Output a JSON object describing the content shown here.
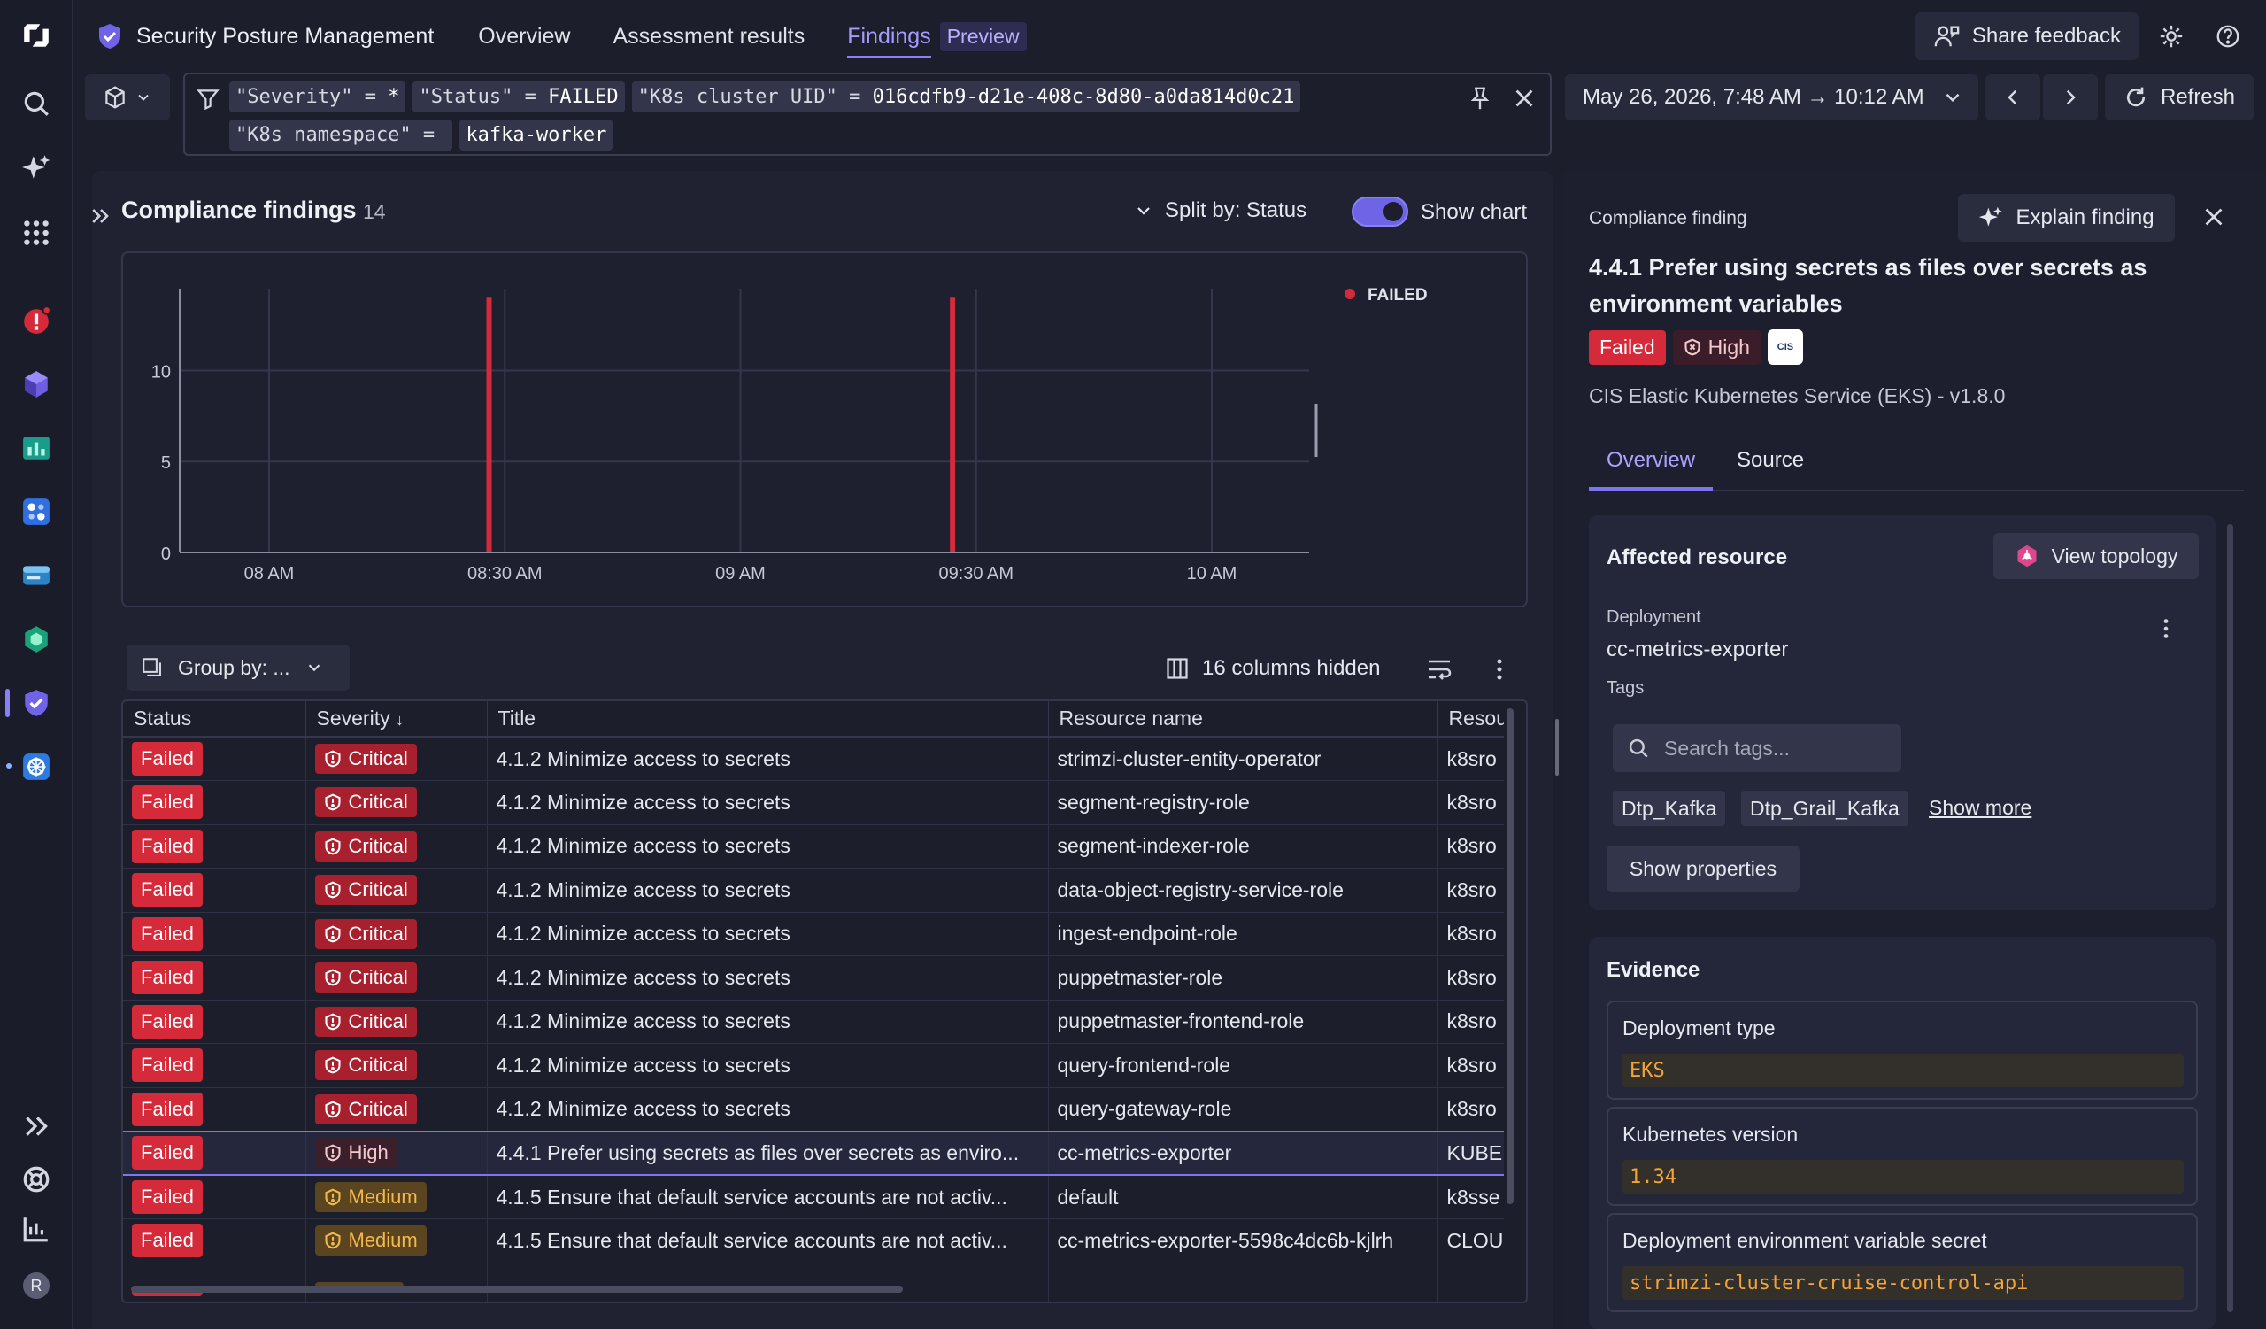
{
  "app": {
    "title": "Security Posture Management",
    "nav": [
      "Overview",
      "Assessment results",
      "Findings"
    ],
    "preview_tag": "Preview",
    "share_feedback": "Share feedback",
    "user_initial": "R"
  },
  "filter": {
    "tokens": [
      {
        "key": "\"Severity\"",
        "op": " = ",
        "value": "*"
      },
      {
        "key": "\"Status\"",
        "op": " = ",
        "value": "FAILED"
      },
      {
        "key": "\"K8s cluster UID\"",
        "op": " = ",
        "value": "016cdfb9-d21e-408c-8d80-a0da814d0c21"
      },
      {
        "key": "\"K8s namespace\"",
        "op": " = ",
        "value": ""
      },
      {
        "key": "",
        "op": "",
        "value": "kafka-worker"
      }
    ]
  },
  "timeframe": "May 26, 2026, 7:48 AM → 10:12 AM",
  "refresh_label": "Refresh",
  "panel": {
    "title": "Compliance findings",
    "count": "14",
    "split_label": "Split by: Status",
    "show_chart_label": "Show chart",
    "show_chart_on": true
  },
  "chart_data": {
    "type": "bar",
    "x_ticks": [
      "08 AM",
      "08:30 AM",
      "09 AM",
      "09:30 AM",
      "10 AM"
    ],
    "y_ticks": [
      0,
      5,
      10
    ],
    "ylim": [
      0,
      14.5
    ],
    "series": [
      {
        "name": "FAILED",
        "color": "#d52a3a",
        "points": [
          {
            "t": "08:28 AM",
            "value": 14
          },
          {
            "t": "09:27 AM",
            "value": 14
          }
        ]
      }
    ],
    "legend_position": "top-right",
    "grid": true
  },
  "table": {
    "group_by": "Group by: ...",
    "columns_hidden": "16 columns hidden",
    "columns": [
      "Status",
      "Severity",
      "Title",
      "Resource name",
      "Resou"
    ],
    "rows": [
      {
        "status": "Failed",
        "severity": "Critical",
        "sev": "critical",
        "title": "4.1.2 Minimize access to secrets",
        "resource": "strimzi-cluster-entity-operator",
        "res2": "k8sro"
      },
      {
        "status": "Failed",
        "severity": "Critical",
        "sev": "critical",
        "title": "4.1.2 Minimize access to secrets",
        "resource": "segment-registry-role",
        "res2": "k8sro"
      },
      {
        "status": "Failed",
        "severity": "Critical",
        "sev": "critical",
        "title": "4.1.2 Minimize access to secrets",
        "resource": "segment-indexer-role",
        "res2": "k8sro"
      },
      {
        "status": "Failed",
        "severity": "Critical",
        "sev": "critical",
        "title": "4.1.2 Minimize access to secrets",
        "resource": "data-object-registry-service-role",
        "res2": "k8sro"
      },
      {
        "status": "Failed",
        "severity": "Critical",
        "sev": "critical",
        "title": "4.1.2 Minimize access to secrets",
        "resource": "ingest-endpoint-role",
        "res2": "k8sro"
      },
      {
        "status": "Failed",
        "severity": "Critical",
        "sev": "critical",
        "title": "4.1.2 Minimize access to secrets",
        "resource": "puppetmaster-role",
        "res2": "k8sro"
      },
      {
        "status": "Failed",
        "severity": "Critical",
        "sev": "critical",
        "title": "4.1.2 Minimize access to secrets",
        "resource": "puppetmaster-frontend-role",
        "res2": "k8sro"
      },
      {
        "status": "Failed",
        "severity": "Critical",
        "sev": "critical",
        "title": "4.1.2 Minimize access to secrets",
        "resource": "query-frontend-role",
        "res2": "k8sro"
      },
      {
        "status": "Failed",
        "severity": "Critical",
        "sev": "critical",
        "title": "4.1.2 Minimize access to secrets",
        "resource": "query-gateway-role",
        "res2": "k8sro"
      },
      {
        "status": "Failed",
        "severity": "High",
        "sev": "high",
        "title": "4.4.1 Prefer using secrets as files over secrets as enviro...",
        "resource": "cc-metrics-exporter",
        "res2": "KUBE",
        "selected": true
      },
      {
        "status": "Failed",
        "severity": "Medium",
        "sev": "medium",
        "title": "4.1.5 Ensure that default service accounts are not activ...",
        "resource": "default",
        "res2": "k8sse"
      },
      {
        "status": "Failed",
        "severity": "Medium",
        "sev": "medium",
        "title": "4.1.5 Ensure that default service accounts are not activ...",
        "resource": "cc-metrics-exporter-5598c4dc6b-kjlrh",
        "res2": "CLOU"
      },
      {
        "status": "",
        "severity": "",
        "sev": "medium",
        "title": "",
        "resource": "",
        "res2": ""
      }
    ]
  },
  "detail": {
    "label": "Compliance finding",
    "explain_label": "Explain finding",
    "title": "4.4.1 Prefer using secrets as files over secrets as environment variables",
    "status": "Failed",
    "severity": "High",
    "cis_logo_text": "CIS",
    "benchmark": "CIS Elastic Kubernetes Service (EKS) - v1.8.0",
    "tabs": [
      "Overview",
      "Source"
    ],
    "affected": {
      "title": "Affected resource",
      "view_topology": "View topology",
      "type_label": "Deployment",
      "name": "cc-metrics-exporter",
      "tags_label": "Tags",
      "search_placeholder": "Search tags...",
      "tags": [
        "Dtp_Kafka",
        "Dtp_Grail_Kafka"
      ],
      "show_more": "Show more",
      "show_properties": "Show properties"
    },
    "evidence": {
      "title": "Evidence",
      "items": [
        {
          "key": "Deployment type",
          "value": "EKS"
        },
        {
          "key": "Kubernetes version",
          "value": "1.34"
        },
        {
          "key": "Deployment environment variable secret",
          "value": "strimzi-cluster-cruise-control-api"
        }
      ]
    }
  }
}
